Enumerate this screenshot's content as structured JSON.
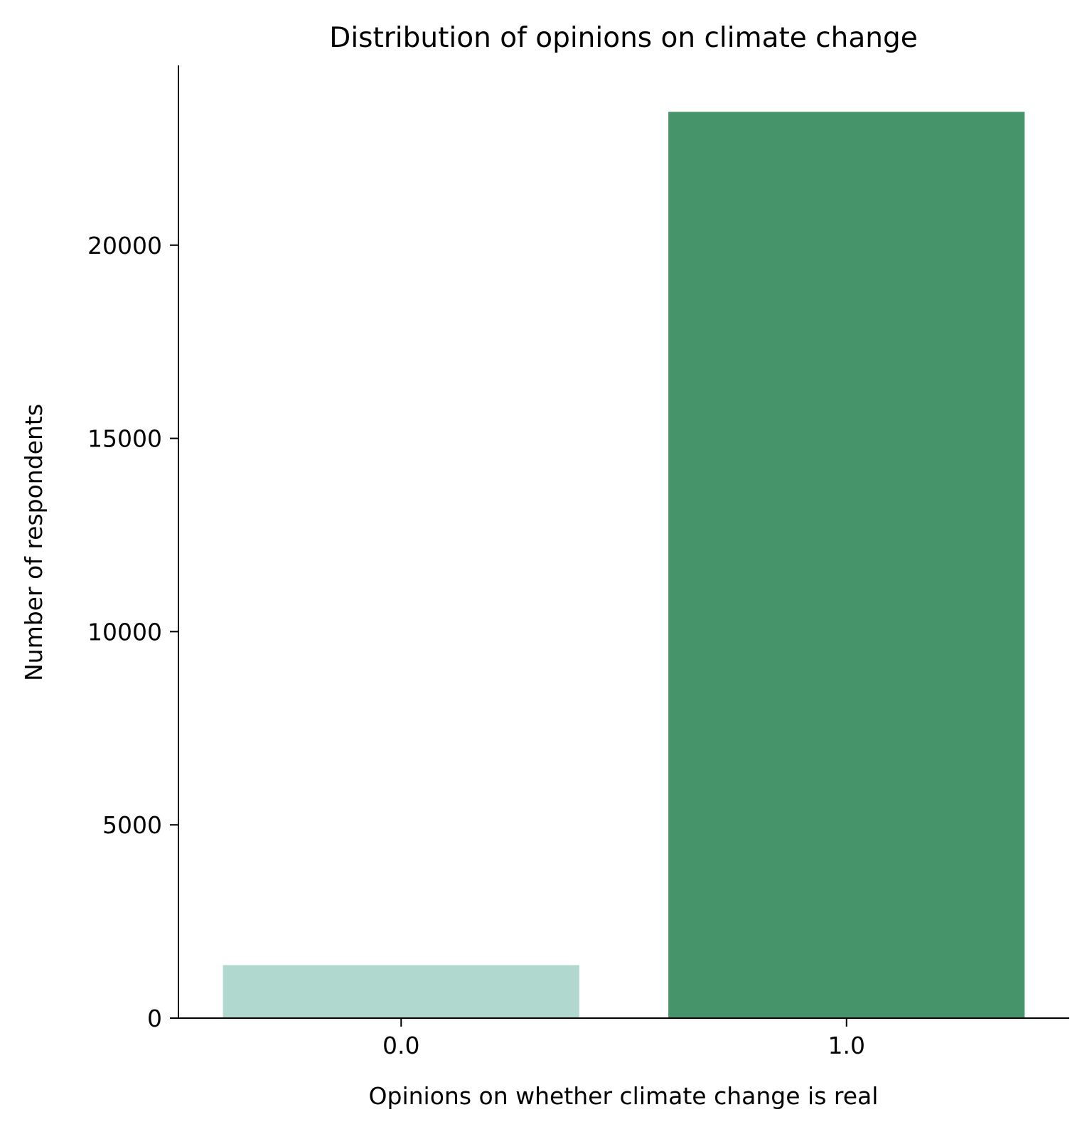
{
  "chart_data": {
    "type": "bar",
    "title": "Distribution of opinions on climate change",
    "xlabel": "Opinions on whether climate change is real",
    "ylabel": "Number of respondents",
    "categories": [
      "0.0",
      "1.0"
    ],
    "values": [
      1370,
      23448
    ],
    "ylim": [
      0,
      24650
    ],
    "yticks": [
      0,
      5000,
      10000,
      15000,
      20000
    ],
    "colors": [
      "#b0d8ce",
      "#46956a"
    ],
    "grid": false,
    "legend": "none",
    "spines": [
      "left",
      "bottom"
    ]
  }
}
